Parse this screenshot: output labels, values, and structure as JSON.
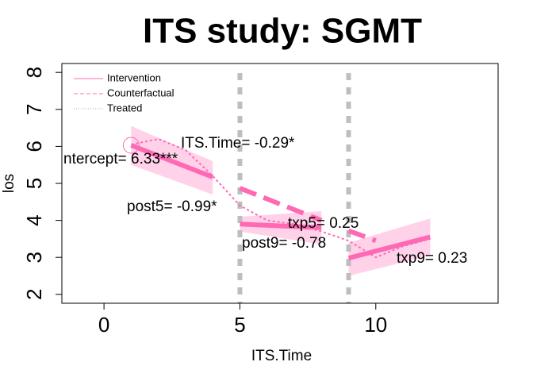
{
  "chart_data": {
    "type": "line",
    "title": "ITS study: SGMT",
    "x_label": "ITS.Time",
    "y_label": "los",
    "xlim": [
      -1.55,
      14.5
    ],
    "ylim": [
      1.76,
      8.24
    ],
    "xticks": [
      0,
      5,
      10
    ],
    "yticks": [
      2,
      3,
      4,
      5,
      6,
      7,
      8
    ],
    "interruptions": [
      5,
      9
    ],
    "interruption_color": "#bebebe",
    "intercept_point": {
      "x": 1,
      "y": 6.03
    },
    "legend": "top-left",
    "series": [
      {
        "name": "Intervention",
        "color": "#ff69b4",
        "style": "solid",
        "band_color": "#ffc7e3",
        "pieces": [
          {
            "x": [
              1,
              4
            ],
            "values": [
              6.03,
              5.17
            ],
            "lower": [
              5.5,
              4.7
            ],
            "upper": [
              6.55,
              5.6
            ]
          },
          {
            "x": [
              5,
              8
            ],
            "values": [
              3.9,
              3.8
            ],
            "lower": [
              3.7,
              3.35
            ],
            "upper": [
              4.1,
              4.25
            ]
          },
          {
            "x": [
              9,
              12
            ],
            "values": [
              2.98,
              3.55
            ],
            "lower": [
              2.5,
              3.05
            ],
            "upper": [
              3.4,
              4.05
            ]
          }
        ]
      },
      {
        "name": "Counterfactual",
        "color": "#ff69b4",
        "style": "dashed",
        "pieces": [
          {
            "x": [
              5,
              8
            ],
            "values": [
              4.87,
              4.0
            ]
          },
          {
            "x": [
              9,
              10
            ],
            "values": [
              3.72,
              3.45
            ]
          }
        ]
      },
      {
        "name": "Treated",
        "color": "#ff69b4",
        "style": "dotted",
        "pieces": [
          {
            "x": [
              1,
              2,
              3,
              4,
              5,
              6,
              7,
              8,
              9,
              10,
              11,
              12
            ],
            "values": [
              6.05,
              6.2,
              5.9,
              5.2,
              4.4,
              4.0,
              3.9,
              3.7,
              3.45,
              3.0,
              3.3,
              3.5
            ]
          }
        ]
      }
    ],
    "annotations": [
      "ITS.Time= -0.29*",
      "ntercept= 6.33***",
      "post5= -0.99*",
      "txp5= 0.25",
      "post9= -0.78",
      "txp9= 0.23"
    ]
  }
}
